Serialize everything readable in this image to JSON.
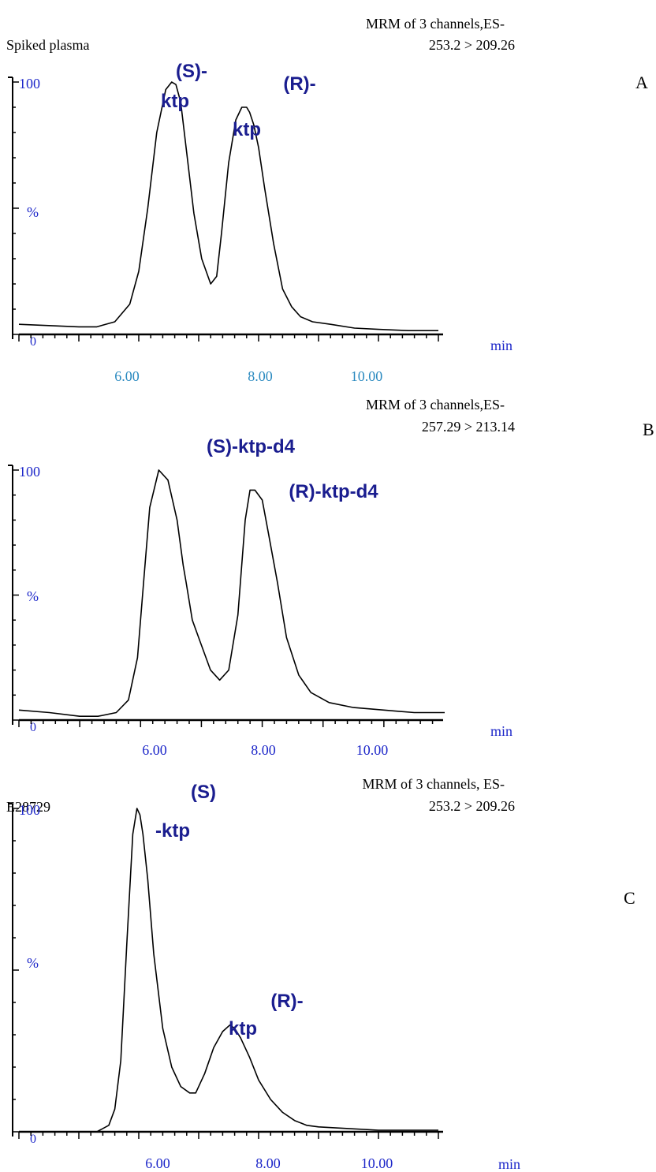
{
  "chart_data": [
    {
      "type": "line",
      "panel_letter": "A",
      "sample_label": "Spiked plasma",
      "header_line1": "MRM of 3 channels,ES-",
      "header_line2": "253.2 > 209.26",
      "y_top_label": "100",
      "y_mid_label": "%",
      "y_zero_label": "0",
      "x_unit_label": "min",
      "xlim": [
        4.0,
        11.0
      ],
      "ylim": [
        0,
        100
      ],
      "ticks": [
        "6.00",
        "8.00",
        "10.00"
      ],
      "peak_labels": [
        {
          "line1": "(S)-",
          "line2": "ktp"
        },
        {
          "line1": "(R)-",
          "line2": "ktp"
        }
      ],
      "series": [
        {
          "x": [
            4.0,
            4.5,
            5.0,
            5.3,
            5.6,
            5.85,
            6.0,
            6.15,
            6.3,
            6.45,
            6.55,
            6.62,
            6.7,
            6.8,
            6.92,
            7.05,
            7.2,
            7.3,
            7.38,
            7.5,
            7.62,
            7.72,
            7.8,
            7.85,
            7.92,
            8.0,
            8.1,
            8.25,
            8.4,
            8.55,
            8.7,
            8.9,
            9.2,
            9.6,
            10.0,
            10.5,
            11.0
          ],
          "y": [
            4,
            3.5,
            3,
            3,
            5,
            12,
            25,
            50,
            80,
            97,
            100,
            99,
            92,
            72,
            48,
            30,
            20,
            23,
            40,
            68,
            85,
            90,
            90,
            88,
            83,
            74,
            58,
            36,
            18,
            11,
            7,
            5,
            4,
            2.5,
            2,
            1.5,
            1.5
          ]
        }
      ]
    },
    {
      "type": "line",
      "panel_letter": "B",
      "header_line1": "MRM of 3 channels,ES-",
      "header_line2": "257.29 > 213.14",
      "y_top_label": "100",
      "y_mid_label": "%",
      "y_zero_label": "0",
      "x_unit_label": "min",
      "xlim": [
        4.0,
        11.0
      ],
      "ylim": [
        0,
        100
      ],
      "ticks": [
        "6.00",
        "8.00",
        "10.00"
      ],
      "peak_labels": [
        {
          "line1": "(S)-ktp-d4",
          "line2": ""
        },
        {
          "line1": "(R)-ktp-d4",
          "line2": ""
        }
      ],
      "series": [
        {
          "x": [
            4.0,
            4.5,
            5.0,
            5.3,
            5.6,
            5.8,
            5.95,
            6.05,
            6.15,
            6.3,
            6.45,
            6.6,
            6.7,
            6.75,
            6.85,
            7.0,
            7.15,
            7.3,
            7.45,
            7.6,
            7.72,
            7.8,
            7.88,
            8.0,
            8.1,
            8.25,
            8.4,
            8.6,
            8.8,
            9.1,
            9.5,
            10.0,
            10.5,
            11.0
          ],
          "y": [
            4,
            3,
            1.5,
            1.5,
            3,
            8,
            25,
            55,
            85,
            100,
            96,
            80,
            62,
            55,
            40,
            30,
            20,
            16,
            20,
            42,
            80,
            92,
            92,
            88,
            75,
            55,
            33,
            18,
            11,
            7,
            5,
            4,
            3,
            3
          ]
        }
      ]
    },
    {
      "type": "line",
      "panel_letter": "C",
      "sample_label": "E28729",
      "header_line1": "MRM of 3 channels, ES-",
      "header_line2": "253.2 > 209.26",
      "y_top_label": "100",
      "y_mid_label": "%",
      "y_zero_label": "0",
      "x_unit_label": "min",
      "xlim": [
        4.0,
        11.0
      ],
      "ylim": [
        0,
        100
      ],
      "ticks": [
        "6.00",
        "8.00",
        "10.00"
      ],
      "peak_labels": [
        {
          "line1": "(S)",
          "line2": "-ktp"
        },
        {
          "line1": "(R)-",
          "line2": "ktp"
        }
      ],
      "series": [
        {
          "x": [
            4.0,
            4.5,
            5.0,
            5.3,
            5.5,
            5.6,
            5.7,
            5.8,
            5.9,
            5.97,
            6.02,
            6.07,
            6.15,
            6.25,
            6.4,
            6.55,
            6.7,
            6.85,
            6.95,
            7.1,
            7.25,
            7.4,
            7.52,
            7.6,
            7.7,
            7.85,
            8.0,
            8.2,
            8.4,
            8.6,
            8.8,
            9.0,
            9.5,
            10.0,
            11.0
          ],
          "y": [
            0,
            0,
            0,
            0,
            2,
            7,
            22,
            58,
            92,
            100,
            98,
            92,
            78,
            55,
            32,
            20,
            14,
            12,
            12,
            18,
            26,
            31,
            33,
            32,
            29,
            23,
            16,
            10,
            6,
            3.5,
            2,
            1.5,
            1,
            0.5,
            0.5
          ]
        }
      ]
    }
  ]
}
